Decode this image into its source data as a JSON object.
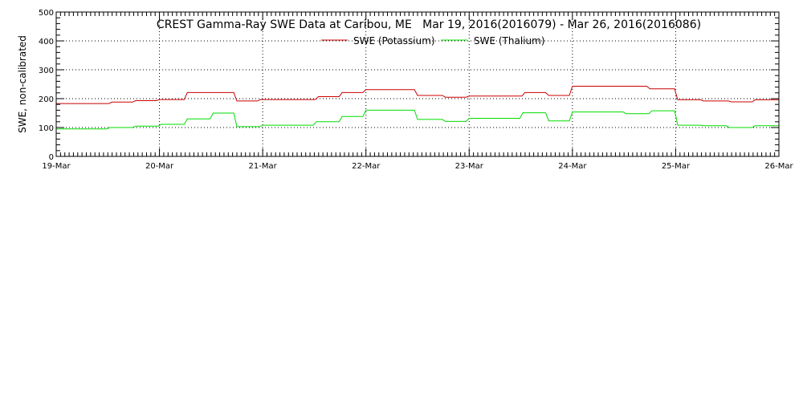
{
  "chart_data": {
    "type": "line",
    "title": "CREST Gamma-Ray SWE Data at Caribou, ME   Mar 19, 2016(2016079) - Mar 26, 2016(2016086)",
    "ylabel": "SWE, non-calibrated",
    "xlabel": "",
    "xlim": [
      0,
      7
    ],
    "ylim": [
      0,
      500
    ],
    "grid": true,
    "legend_position": "top-center",
    "x_ticks": [
      {
        "value": 0,
        "label": "19-Mar"
      },
      {
        "value": 1,
        "label": "20-Mar"
      },
      {
        "value": 2,
        "label": "21-Mar"
      },
      {
        "value": 3,
        "label": "22-Mar"
      },
      {
        "value": 4,
        "label": "23-Mar"
      },
      {
        "value": 5,
        "label": "24-Mar"
      },
      {
        "value": 6,
        "label": "25-Mar"
      },
      {
        "value": 7,
        "label": "26-Mar"
      }
    ],
    "y_ticks": [
      {
        "value": 0,
        "label": "0"
      },
      {
        "value": 100,
        "label": "100"
      },
      {
        "value": 200,
        "label": "200"
      },
      {
        "value": 300,
        "label": "300"
      },
      {
        "value": 400,
        "label": "400"
      },
      {
        "value": 500,
        "label": "500"
      }
    ],
    "series": [
      {
        "name": "SWE (Potassium)",
        "color": "#cc0000",
        "steps": [
          [
            0.0,
            183
          ],
          [
            0.54,
            188
          ],
          [
            0.77,
            193
          ],
          [
            1.0,
            197
          ],
          [
            1.27,
            221
          ],
          [
            1.75,
            192
          ],
          [
            1.98,
            197
          ],
          [
            2.54,
            207
          ],
          [
            2.77,
            221
          ],
          [
            3.0,
            231
          ],
          [
            3.5,
            211
          ],
          [
            3.77,
            205
          ],
          [
            4.0,
            209
          ],
          [
            4.54,
            221
          ],
          [
            4.77,
            211
          ],
          [
            5.0,
            243
          ],
          [
            5.75,
            234
          ],
          [
            6.02,
            196
          ],
          [
            6.27,
            192
          ],
          [
            6.54,
            189
          ],
          [
            6.77,
            196
          ],
          [
            7.0,
            196
          ]
        ]
      },
      {
        "name": "SWE (Thalium)",
        "color": "#00dd00",
        "steps": [
          [
            0.0,
            95
          ],
          [
            0.52,
            100
          ],
          [
            0.77,
            105
          ],
          [
            1.02,
            111
          ],
          [
            1.27,
            130
          ],
          [
            1.52,
            150
          ],
          [
            1.75,
            103
          ],
          [
            2.0,
            108
          ],
          [
            2.52,
            120
          ],
          [
            2.77,
            138
          ],
          [
            3.0,
            160
          ],
          [
            3.5,
            128
          ],
          [
            3.77,
            121
          ],
          [
            4.0,
            132
          ],
          [
            4.52,
            151
          ],
          [
            4.77,
            123
          ],
          [
            5.0,
            154
          ],
          [
            5.52,
            148
          ],
          [
            5.77,
            158
          ],
          [
            6.02,
            108
          ],
          [
            6.27,
            106
          ],
          [
            6.52,
            100
          ],
          [
            6.77,
            106
          ],
          [
            7.0,
            106
          ]
        ]
      }
    ]
  }
}
